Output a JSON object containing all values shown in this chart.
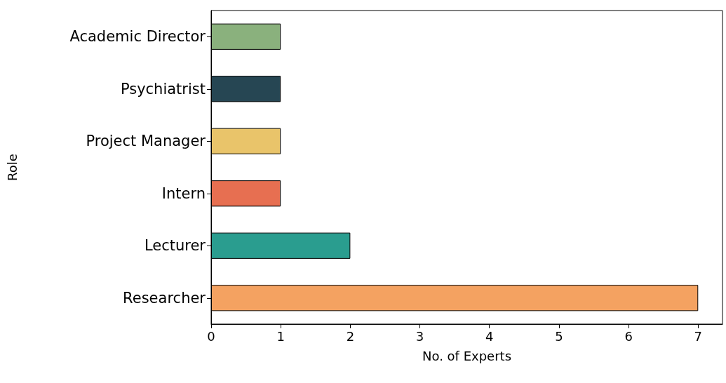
{
  "chart_data": {
    "type": "bar",
    "orientation": "horizontal",
    "xlabel": "No. of Experts",
    "ylabel": "Role",
    "categories": [
      "Academic Director",
      "Psychiatrist",
      "Project Manager",
      "Intern",
      "Lecturer",
      "Researcher"
    ],
    "values": [
      1,
      1,
      1,
      1,
      2,
      7
    ],
    "colors": [
      "#8ab17d",
      "#264653",
      "#e9c46a",
      "#e76f51",
      "#2a9d8f",
      "#f4a261"
    ],
    "xlim": [
      0,
      7.35
    ],
    "xticks": [
      0,
      1,
      2,
      3,
      4,
      5,
      6,
      7
    ],
    "grid": false
  }
}
